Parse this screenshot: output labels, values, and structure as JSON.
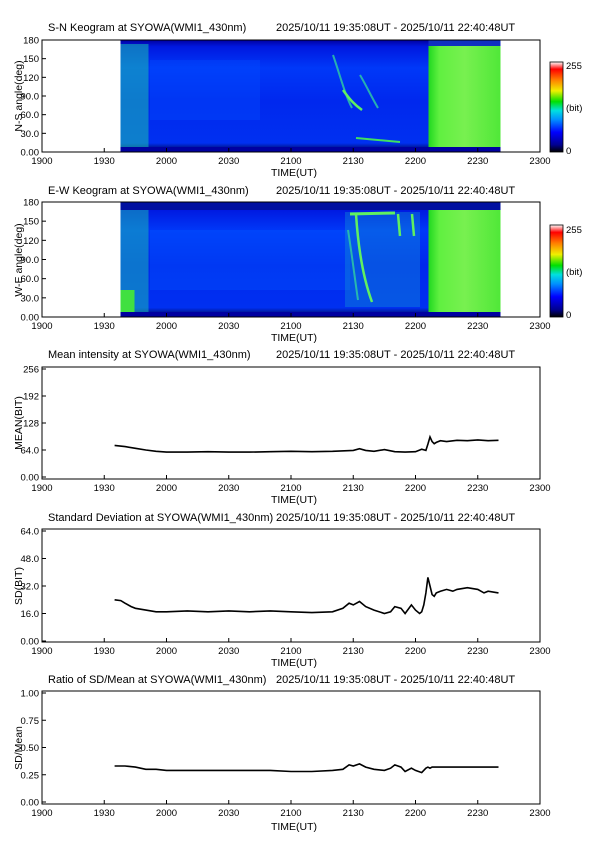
{
  "colors": {
    "line": "#000000",
    "background": "#ffffff"
  },
  "shared": {
    "time_range": "2025/10/11 19:35:08UT - 2025/10/11 22:40:48UT",
    "xlabel": "TIME(UT)",
    "xticks": [
      "1900",
      "1930",
      "2000",
      "2030",
      "2100",
      "2130",
      "2200",
      "2230",
      "2300"
    ]
  },
  "chart_data": [
    {
      "type": "heatmap",
      "title": "S-N Keogram at SYOWA(WMI1_430nm)",
      "ylabel": "N-S angle(deg)",
      "yticks": [
        "180",
        "150",
        "120",
        "90.0",
        "60.0",
        "30.0",
        "0.00"
      ],
      "ylim": [
        0,
        180
      ],
      "data_start": "19:35:08",
      "data_end": "22:40:48",
      "colorbar": {
        "max_label": "255",
        "unit_label": "(bit)",
        "min_label": "0",
        "range": [
          0,
          255
        ]
      },
      "features": {
        "background_level": "low (blue)",
        "bright_period": [
          "22:07",
          "22:40"
        ],
        "early_band": [
          "19:35",
          "19:45"
        ],
        "arcs_period": [
          "21:20",
          "21:45"
        ]
      }
    },
    {
      "type": "heatmap",
      "title": "E-W Keogram at SYOWA(WMI1_430nm)",
      "ylabel": "W-E angle(deg)",
      "yticks": [
        "180",
        "150",
        "120",
        "90.0",
        "60.0",
        "30.0",
        "0.00"
      ],
      "ylim": [
        0,
        180
      ],
      "data_start": "19:35:08",
      "data_end": "22:40:48",
      "colorbar": {
        "max_label": "255",
        "unit_label": "(bit)",
        "min_label": "0",
        "range": [
          0,
          255
        ]
      },
      "features": {
        "background_level": "low (blue)",
        "bright_period": [
          "22:07",
          "22:40"
        ],
        "early_band": [
          "19:35",
          "19:45"
        ],
        "arcs_period": [
          "21:25",
          "21:55"
        ]
      }
    },
    {
      "type": "line",
      "title": "Mean intensity at SYOWA(WMI1_430nm)",
      "ylabel": "MEAN(BIT)",
      "yticks": [
        "256",
        "192",
        "128",
        "64.0",
        "0.00"
      ],
      "ylim": [
        0,
        256
      ],
      "x": [
        "19:35",
        "19:40",
        "19:45",
        "19:50",
        "19:55",
        "20:00",
        "20:10",
        "20:20",
        "20:30",
        "20:40",
        "20:50",
        "21:00",
        "21:10",
        "21:20",
        "21:30",
        "21:33",
        "21:36",
        "21:40",
        "21:45",
        "21:50",
        "21:55",
        "22:00",
        "22:03",
        "22:05",
        "22:06",
        "22:07",
        "22:08",
        "22:09",
        "22:10",
        "22:12",
        "22:15",
        "22:20",
        "22:25",
        "22:30",
        "22:35",
        "22:40"
      ],
      "y": [
        75,
        72,
        68,
        64,
        61,
        59,
        59,
        60,
        59,
        59,
        60,
        61,
        60,
        61,
        63,
        67,
        63,
        61,
        65,
        60,
        59,
        60,
        66,
        63,
        78,
        95,
        84,
        79,
        82,
        86,
        84,
        87,
        86,
        88,
        86,
        87
      ]
    },
    {
      "type": "line",
      "title": "Standard Deviation at SYOWA(WMI1_430nm)",
      "ylabel": "SD(BIT)",
      "yticks": [
        "64.0",
        "48.0",
        "32.0",
        "16.0",
        "0.00"
      ],
      "ylim": [
        0,
        64
      ],
      "x": [
        "19:35",
        "19:38",
        "19:40",
        "19:43",
        "19:45",
        "19:50",
        "19:55",
        "20:00",
        "20:10",
        "20:20",
        "20:30",
        "20:40",
        "20:50",
        "21:00",
        "21:10",
        "21:20",
        "21:25",
        "21:28",
        "21:30",
        "21:33",
        "21:36",
        "21:40",
        "21:45",
        "21:48",
        "21:50",
        "21:53",
        "21:55",
        "21:58",
        "22:00",
        "22:02",
        "22:03",
        "22:04",
        "22:05",
        "22:06",
        "22:07",
        "22:08",
        "22:09",
        "22:10",
        "22:12",
        "22:15",
        "22:18",
        "22:20",
        "22:25",
        "22:30",
        "22:33",
        "22:35",
        "22:40"
      ],
      "y": [
        24,
        23.5,
        22,
        20,
        19,
        18,
        17,
        17,
        17.5,
        17,
        17.5,
        17,
        17.5,
        17,
        16.5,
        17,
        19,
        22,
        21,
        23,
        20,
        18,
        16,
        17,
        20,
        19,
        16,
        21,
        18,
        16,
        17,
        21,
        28,
        37,
        32,
        27,
        26,
        28,
        29,
        30,
        29,
        30,
        31,
        30,
        28,
        29,
        28
      ]
    },
    {
      "type": "line",
      "title": "Ratio of SD/Mean at SYOWA(WMI1_430nm)",
      "ylabel": "SD/Mean",
      "yticks": [
        "1.00",
        "0.75",
        "0.50",
        "0.25",
        "0.00"
      ],
      "ylim": [
        0,
        1
      ],
      "x": [
        "19:35",
        "19:40",
        "19:45",
        "19:50",
        "19:55",
        "20:00",
        "20:10",
        "20:20",
        "20:30",
        "20:40",
        "20:50",
        "21:00",
        "21:10",
        "21:20",
        "21:25",
        "21:28",
        "21:30",
        "21:33",
        "21:36",
        "21:40",
        "21:45",
        "21:48",
        "21:50",
        "21:53",
        "21:55",
        "21:58",
        "22:00",
        "22:03",
        "22:05",
        "22:06",
        "22:07",
        "22:08",
        "22:10",
        "22:15",
        "22:20",
        "22:25",
        "22:30",
        "22:35",
        "22:40"
      ],
      "y": [
        0.33,
        0.33,
        0.32,
        0.3,
        0.3,
        0.29,
        0.29,
        0.29,
        0.29,
        0.29,
        0.29,
        0.28,
        0.28,
        0.29,
        0.3,
        0.34,
        0.33,
        0.35,
        0.32,
        0.3,
        0.29,
        0.31,
        0.34,
        0.32,
        0.28,
        0.31,
        0.29,
        0.27,
        0.31,
        0.32,
        0.31,
        0.32,
        0.32,
        0.32,
        0.32,
        0.32,
        0.32,
        0.32,
        0.32
      ]
    }
  ]
}
